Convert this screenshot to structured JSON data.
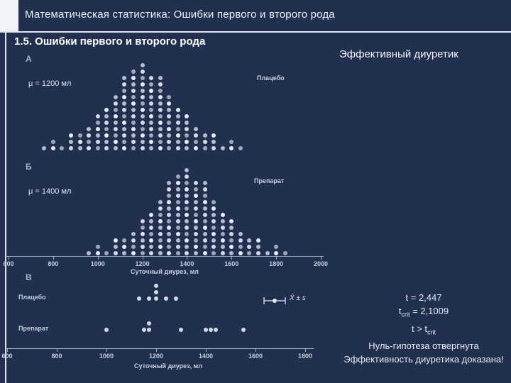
{
  "slide": {
    "header_title": "Математическая статистика: Ошибки первого и второго рода",
    "section_title": "1.5. Ошибки первого и второго рода",
    "subtitle": "Эффективный диуретик"
  },
  "axis": {
    "label": "Суточный диурез, мл",
    "ticks_top": [
      "600",
      "800",
      "1000",
      "1200",
      "1400",
      "1600",
      "1800",
      "2000"
    ],
    "ticks_bottom": [
      "600",
      "800",
      "1000",
      "1200",
      "1400",
      "1600",
      "1800"
    ]
  },
  "chart_data": [
    {
      "type": "dot-histogram",
      "panel": "А",
      "label": "Плацебо",
      "mu_label": "μ = 1200 мл",
      "mean": 1200,
      "x_range": [
        600,
        2000
      ],
      "bins_start": 760,
      "bin_step": 40,
      "counts": [
        1,
        2,
        1,
        3,
        3,
        4,
        6,
        7,
        9,
        12,
        13,
        14,
        12,
        12,
        9,
        7,
        6,
        4,
        3,
        3,
        1,
        2,
        1
      ]
    },
    {
      "type": "dot-histogram",
      "panel": "Б",
      "label": "Препарат",
      "mu_label": "μ = 1400 мл",
      "mean": 1400,
      "x_range": [
        600,
        2000
      ],
      "bins_start": 960,
      "bin_step": 40,
      "counts": [
        1,
        2,
        1,
        3,
        3,
        4,
        6,
        7,
        9,
        12,
        13,
        14,
        12,
        12,
        9,
        7,
        6,
        4,
        3,
        3,
        1,
        2,
        1
      ]
    },
    {
      "type": "dot-strip",
      "panel": "В",
      "legend": "X̄ ± s",
      "x_range": [
        600,
        1800
      ],
      "rows": [
        {
          "label": "Плацебо",
          "values": [
            1130,
            1170,
            1200,
            1200,
            1200,
            1240,
            1280
          ]
        },
        {
          "label": "Препарат",
          "values": [
            1000,
            1150,
            1170,
            1170,
            1300,
            1400,
            1420,
            1440,
            1550
          ]
        }
      ]
    }
  ],
  "stats": {
    "t_value": "t = 2,447",
    "tcrit_base": "t",
    "tcrit_sub": "crit",
    "tcrit_rest": " = 2,1009",
    "compare_base": "t > t",
    "compare_sub": "crit",
    "conclusion_1": "Нуль-гипотеза отвергнута",
    "conclusion_2": "Эффективность диуретика доказана!"
  }
}
